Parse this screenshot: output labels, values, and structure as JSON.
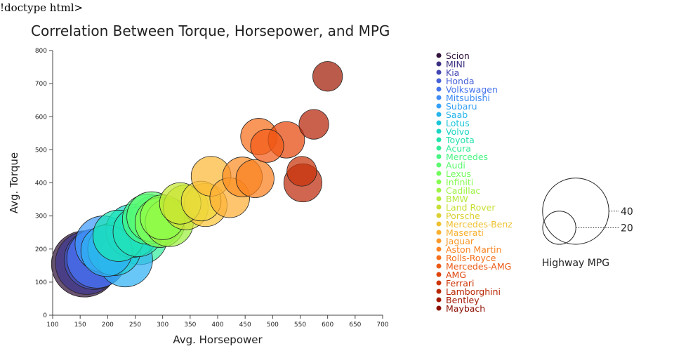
{
  "page": {
    "doctype_text": "!doctype html>"
  },
  "chart_data": {
    "type": "scatter",
    "title": "Correlation Between Torque, Horsepower, and MPG",
    "xlabel": "Avg. Horsepower",
    "ylabel": "Avg. Torque",
    "xlim": [
      100,
      700
    ],
    "ylim": [
      0,
      800
    ],
    "xticks": [
      100,
      150,
      200,
      250,
      300,
      350,
      400,
      450,
      500,
      550,
      600,
      650,
      700
    ],
    "yticks": [
      0,
      100,
      200,
      300,
      400,
      500,
      600,
      700,
      800
    ],
    "size_legend": {
      "title": "Highway MPG",
      "values": [
        40,
        20
      ]
    },
    "legend_placement": "right",
    "points": [
      {
        "name": "Scion",
        "x": 158,
        "y": 155,
        "size": 40,
        "color": "#30123b"
      },
      {
        "name": "MINI",
        "x": 162,
        "y": 158,
        "size": 38,
        "color": "#3e378f"
      },
      {
        "name": "Kia",
        "x": 175,
        "y": 168,
        "size": 36,
        "color": "#4454c4"
      },
      {
        "name": "Honda",
        "x": 180,
        "y": 172,
        "size": 36,
        "color": "#4672f0"
      },
      {
        "name": "Volkswagen",
        "x": 192,
        "y": 215,
        "size": 34,
        "color": "#3e9bfe"
      },
      {
        "name": "Mitsubishi",
        "x": 198,
        "y": 195,
        "size": 31,
        "color": "#2fb2f4"
      },
      {
        "name": "Subaru",
        "x": 212,
        "y": 200,
        "size": 32,
        "color": "#1bcfd4"
      },
      {
        "name": "Saab",
        "x": 220,
        "y": 240,
        "size": 31,
        "color": "#1ae4b6"
      },
      {
        "name": "Lotus",
        "x": 232,
        "y": 168,
        "size": 33,
        "color": "#2fb2f4"
      },
      {
        "name": "Volvo",
        "x": 245,
        "y": 255,
        "size": 32,
        "color": "#18d5cc"
      },
      {
        "name": "Toyota",
        "x": 255,
        "y": 252,
        "size": 30,
        "color": "#23e2b8"
      },
      {
        "name": "Acura",
        "x": 258,
        "y": 238,
        "size": 34,
        "color": "#35ed9f"
      },
      {
        "name": "Mercedes",
        "x": 272,
        "y": 290,
        "size": 30,
        "color": "#46f884"
      },
      {
        "name": "Audi",
        "x": 280,
        "y": 298,
        "size": 30,
        "color": "#5bfc70"
      },
      {
        "name": "Lexus",
        "x": 288,
        "y": 285,
        "size": 31,
        "color": "#72fe5e"
      },
      {
        "name": "Infiniti",
        "x": 295,
        "y": 280,
        "size": 30,
        "color": "#84ff55"
      },
      {
        "name": "Cadillac",
        "x": 300,
        "y": 296,
        "size": 27,
        "color": "#8ffe4a"
      },
      {
        "name": "BMW",
        "x": 312,
        "y": 280,
        "size": 29,
        "color": "#9df03f"
      },
      {
        "name": "Land Rover",
        "x": 332,
        "y": 338,
        "size": 25,
        "color": "#c5e832"
      },
      {
        "name": "Porsche",
        "x": 342,
        "y": 326,
        "size": 27,
        "color": "#d4e034"
      },
      {
        "name": "Mercedes-Benz",
        "x": 370,
        "y": 345,
        "size": 24,
        "color": "#eed93a"
      },
      {
        "name": "Maserati",
        "x": 378,
        "y": 333,
        "size": 26,
        "color": "#fcc53a"
      },
      {
        "name": "Jaguar",
        "x": 388,
        "y": 420,
        "size": 24,
        "color": "#fbb938"
      },
      {
        "name": "Aston Martin",
        "x": 422,
        "y": 355,
        "size": 24,
        "color": "#fdae36"
      },
      {
        "name": "Rolls-Royce",
        "x": 445,
        "y": 418,
        "size": 24,
        "color": "#fb8e24"
      },
      {
        "name": "Mercedes-AMG",
        "x": 468,
        "y": 413,
        "size": 23,
        "color": "#fa801f"
      },
      {
        "name": "AMG",
        "x": 475,
        "y": 540,
        "size": 22,
        "color": "#f66d1a"
      },
      {
        "name": "Ferrari",
        "x": 490,
        "y": 512,
        "size": 20,
        "color": "#f35a16"
      },
      {
        "name": "Lamborghini",
        "x": 525,
        "y": 530,
        "size": 22,
        "color": "#e4460a"
      },
      {
        "name": "Bentley",
        "x": 553,
        "y": 435,
        "size": 18,
        "color": "#c8320a"
      },
      {
        "name": "Maybach",
        "x": 555,
        "y": 400,
        "size": 23,
        "color": "#be2b0b"
      },
      {
        "name": "Bentley",
        "x": 575,
        "y": 577,
        "size": 18,
        "color": "#b52408"
      },
      {
        "name": "Maybach",
        "x": 600,
        "y": 722,
        "size": 18,
        "color": "#a01c06"
      }
    ],
    "legend": [
      {
        "name": "Scion",
        "color": "#30123b"
      },
      {
        "name": "MINI",
        "color": "#3a2f80"
      },
      {
        "name": "Kia",
        "color": "#4246b2"
      },
      {
        "name": "Honda",
        "color": "#4660d8"
      },
      {
        "name": "Volkswagen",
        "color": "#4674ec"
      },
      {
        "name": "Mitsubishi",
        "color": "#3f8cf6"
      },
      {
        "name": "Subaru",
        "color": "#33a0f5"
      },
      {
        "name": "Saab",
        "color": "#25b4eb"
      },
      {
        "name": "Lotus",
        "color": "#1bc6d8"
      },
      {
        "name": "Volvo",
        "color": "#19d6c2"
      },
      {
        "name": "Toyota",
        "color": "#22e2ac"
      },
      {
        "name": "Acura",
        "color": "#34ec98"
      },
      {
        "name": "Mercedes",
        "color": "#48f482"
      },
      {
        "name": "Audi",
        "color": "#5cf970"
      },
      {
        "name": "Lexus",
        "color": "#72fc5e"
      },
      {
        "name": "Infiniti",
        "color": "#86fc52"
      },
      {
        "name": "Cadillac",
        "color": "#9ef446"
      },
      {
        "name": "BMW",
        "color": "#b4ea3c"
      },
      {
        "name": "Land Rover",
        "color": "#c8df34"
      },
      {
        "name": "Porsche",
        "color": "#dcd031"
      },
      {
        "name": "Mercedes-Benz",
        "color": "#eec130"
      },
      {
        "name": "Maserati",
        "color": "#f8b02f"
      },
      {
        "name": "Jaguar",
        "color": "#fb9a2a"
      },
      {
        "name": "Aston Martin",
        "color": "#fb8424"
      },
      {
        "name": "Rolls-Royce",
        "color": "#f66f1c"
      },
      {
        "name": "Mercedes-AMG",
        "color": "#ec5914"
      },
      {
        "name": "AMG",
        "color": "#de450c"
      },
      {
        "name": "Ferrari",
        "color": "#cc3507"
      },
      {
        "name": "Lamborghini",
        "color": "#b82604"
      },
      {
        "name": "Bentley",
        "color": "#a21902"
      },
      {
        "name": "Maybach",
        "color": "#8b0f02"
      }
    ]
  }
}
